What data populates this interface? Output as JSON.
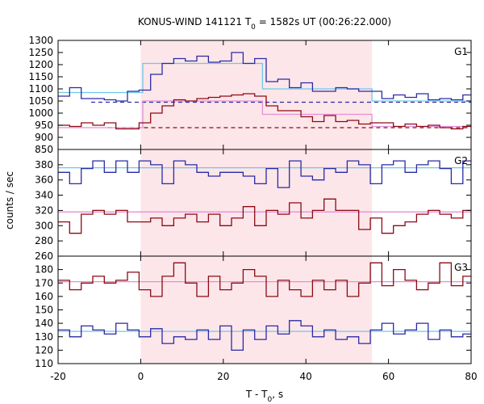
{
  "chart_data": {
    "type": "line",
    "title": "KONUS-WIND 141121 T",
    "title_sub": "0",
    "title_rest": " = 1582s UT (00:26:22.000)",
    "xlabel": "T - T",
    "xlabel_sub": "0",
    "xlabel_rest": ", s",
    "ylabel": "counts / sec",
    "xlim": [
      -20,
      80
    ],
    "xticks": [
      -20,
      0,
      20,
      40,
      60,
      80
    ],
    "highlight": {
      "x0": 0,
      "x1": 56,
      "color": "#fde6e9"
    },
    "colors": {
      "blue": "#2a2aa6",
      "red": "#8b0a14",
      "cyan": "#6ec8e8",
      "pink": "#e58fd8"
    },
    "panels": [
      {
        "label": "G1",
        "ylim": [
          850,
          1300
        ],
        "yticks": [
          850,
          900,
          950,
          1000,
          1050,
          1100,
          1150,
          1200,
          1250,
          1300
        ],
        "dashed": [
          {
            "y": 1045,
            "color": "blue",
            "x0": -12,
            "x1": 80
          },
          {
            "y": 940,
            "color": "red",
            "x0": -8,
            "x1": 80
          }
        ],
        "series": [
          {
            "color": "blue",
            "x0": -20,
            "dx": 2.8,
            "values": [
              1070,
              1105,
              1060,
              1060,
              1055,
              1050,
              1090,
              1095,
              1160,
              1205,
              1225,
              1215,
              1235,
              1210,
              1215,
              1250,
              1205,
              1225,
              1130,
              1140,
              1105,
              1125,
              1090,
              1090,
              1105,
              1100,
              1090,
              1090,
              1060,
              1075,
              1065,
              1080,
              1055,
              1060,
              1055,
              1075,
              1040
            ]
          },
          {
            "color": "red",
            "x0": -20,
            "dx": 2.8,
            "values": [
              950,
              945,
              960,
              950,
              960,
              935,
              935,
              960,
              1000,
              1030,
              1055,
              1050,
              1060,
              1065,
              1070,
              1075,
              1080,
              1070,
              1030,
              1010,
              1010,
              985,
              965,
              990,
              965,
              970,
              955,
              960,
              960,
              945,
              955,
              945,
              950,
              940,
              935,
              945,
              945
            ]
          }
        ],
        "fits": [
          {
            "color": "cyan",
            "steps": [
              [
                -20,
                1085
              ],
              [
                0.5,
                1085
              ],
              [
                0.5,
                1205
              ],
              [
                29.5,
                1205
              ],
              [
                29.5,
                1100
              ],
              [
                56,
                1100
              ],
              [
                56,
                1050
              ],
              [
                80,
                1050
              ]
            ]
          },
          {
            "color": "pink",
            "steps": [
              [
                -20,
                940
              ],
              [
                0.5,
                940
              ],
              [
                0.5,
                1050
              ],
              [
                29.5,
                1050
              ],
              [
                29.5,
                995
              ],
              [
                56,
                995
              ],
              [
                56,
                945
              ],
              [
                80,
                945
              ]
            ]
          }
        ]
      },
      {
        "label": "G2",
        "ylim": [
          260,
          400
        ],
        "yticks": [
          260,
          280,
          300,
          320,
          340,
          360,
          380,
          400
        ],
        "dashed": [],
        "series": [
          {
            "color": "blue",
            "x0": -20,
            "dx": 2.8,
            "values": [
              370,
              355,
              375,
              385,
              370,
              385,
              370,
              385,
              380,
              355,
              385,
              380,
              370,
              365,
              370,
              370,
              365,
              355,
              375,
              350,
              385,
              365,
              360,
              375,
              370,
              385,
              380,
              355,
              380,
              385,
              370,
              380,
              385,
              375,
              355,
              385,
              380
            ]
          },
          {
            "color": "red",
            "x0": -20,
            "dx": 2.8,
            "values": [
              305,
              290,
              315,
              320,
              315,
              320,
              305,
              305,
              310,
              300,
              310,
              315,
              305,
              315,
              300,
              310,
              325,
              300,
              320,
              315,
              330,
              310,
              320,
              335,
              320,
              320,
              295,
              310,
              290,
              300,
              305,
              315,
              320,
              315,
              310,
              320,
              310
            ]
          }
        ],
        "fits": [
          {
            "color": "cyan",
            "steps": [
              [
                -20,
                376
              ],
              [
                80,
                376
              ]
            ]
          },
          {
            "color": "pink",
            "steps": [
              [
                -20,
                318
              ],
              [
                80,
                318
              ]
            ]
          }
        ]
      },
      {
        "label": "G3",
        "ylim": [
          110,
          190
        ],
        "yticks": [
          110,
          120,
          130,
          140,
          150,
          160,
          170,
          180,
          190
        ],
        "dashed": [],
        "series": [
          {
            "color": "red",
            "x0": -20,
            "dx": 2.8,
            "values": [
              172,
              165,
              170,
              175,
              170,
              172,
              178,
              165,
              160,
              175,
              185,
              170,
              160,
              175,
              165,
              170,
              180,
              175,
              160,
              172,
              165,
              160,
              172,
              165,
              172,
              160,
              170,
              185,
              168,
              180,
              172,
              165,
              170,
              185,
              168,
              175,
              180
            ]
          },
          {
            "color": "blue",
            "x0": -20,
            "dx": 2.8,
            "values": [
              135,
              130,
              138,
              135,
              132,
              140,
              135,
              130,
              136,
              125,
              130,
              128,
              135,
              128,
              138,
              120,
              135,
              128,
              138,
              132,
              142,
              138,
              130,
              135,
              128,
              130,
              125,
              135,
              140,
              132,
              135,
              140,
              128,
              135,
              130,
              132,
              130
            ]
          }
        ],
        "fits": [
          {
            "color": "cyan",
            "steps": [
              [
                -20,
                134
              ],
              [
                80,
                134
              ]
            ]
          },
          {
            "color": "pink",
            "steps": [
              [
                -20,
                171
              ],
              [
                80,
                171
              ]
            ]
          }
        ]
      }
    ]
  }
}
